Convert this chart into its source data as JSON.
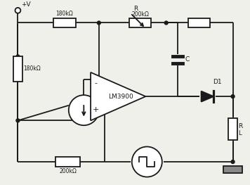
{
  "background_color": "#f0f0eb",
  "line_color": "#1a1a1a",
  "lw": 1.3,
  "figsize": [
    3.56,
    2.63
  ],
  "dpi": 100,
  "labels": {
    "pv": "+V",
    "r1": "180kΩ",
    "r2": "180kΩ",
    "r3": "200kΩ",
    "r_feed": "R",
    "r_feed2": "200kΩ",
    "r_top": "",
    "rl_r": "R",
    "rl_l": "L",
    "c": "C",
    "d1": "D1",
    "lm": "LM3900"
  }
}
